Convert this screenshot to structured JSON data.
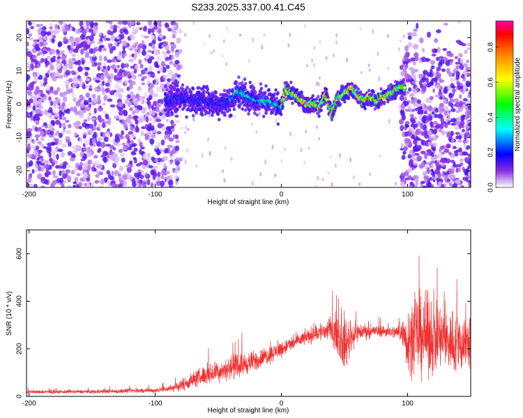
{
  "chart_data": [
    {
      "type": "heatmap",
      "title": "S233.2025.337.00.41.C45",
      "xlabel": "Height of straight line (km)",
      "ylabel": "Frequency (Hz)",
      "xlim": [
        -202,
        150
      ],
      "ylim": [
        -25,
        25
      ],
      "xticks": [
        -200,
        -100,
        0,
        100
      ],
      "xtick_labels": [
        "-200",
        "-100",
        "0",
        "100"
      ],
      "yticks": [
        -20,
        -10,
        0,
        10,
        20
      ],
      "ytick_labels": [
        "-20",
        "-10",
        "0",
        "10",
        "20"
      ],
      "colorbar": {
        "label": "Normalized spectral amplitude",
        "range": [
          0,
          0.95
        ],
        "ticks": [
          0.0,
          0.2,
          0.4,
          0.6,
          0.8
        ],
        "tick_labels": [
          "0.0",
          "0.2",
          "0.4",
          "0.6",
          "0.8"
        ],
        "colors": [
          "#ffffff",
          "#8a2be2",
          "#0000ff",
          "#00ffff",
          "#00ff00",
          "#ffff00",
          "#ff8000",
          "#ff0000",
          "#ff00aa"
        ]
      },
      "ridge_x": [
        -90,
        -80,
        -70,
        -60,
        -50,
        -40,
        -35,
        -30,
        -20,
        -10,
        0,
        3,
        10,
        20,
        25,
        30,
        35,
        40,
        45,
        50,
        55,
        60,
        65,
        70,
        75,
        80,
        85,
        90,
        92
      ],
      "ridge_freq": [
        1,
        2,
        1,
        1,
        0,
        1,
        4,
        3,
        1,
        1,
        -1,
        4,
        3,
        0,
        0,
        -1,
        3,
        -3,
        2,
        3,
        5,
        3,
        1,
        2,
        1,
        2,
        3,
        4,
        5
      ]
    },
    {
      "type": "line",
      "xlabel": "Height of straight line (km)",
      "ylabel": "SNR (10 * v/v)",
      "xlim": [
        -202,
        150
      ],
      "ylim": [
        0,
        700
      ],
      "xticks": [
        -200,
        -100,
        0,
        100
      ],
      "xtick_labels": [
        "-200",
        "-100",
        "0",
        "100"
      ],
      "yticks": [
        0,
        200,
        400,
        600
      ],
      "ytick_labels": [
        "0",
        "200",
        "400",
        "600"
      ],
      "color": "#ee3333",
      "envelope_x": [
        -202,
        -150,
        -100,
        -90,
        -80,
        -70,
        -60,
        -50,
        -40,
        -30,
        -20,
        -10,
        0,
        10,
        20,
        30,
        40,
        45,
        50,
        55,
        60,
        70,
        80,
        90,
        95,
        100,
        110,
        120,
        130,
        140,
        150
      ],
      "envelope_mean": [
        18,
        20,
        25,
        32,
        45,
        70,
        90,
        105,
        120,
        135,
        150,
        175,
        200,
        225,
        250,
        270,
        280,
        260,
        210,
        250,
        270,
        275,
        275,
        270,
        270,
        240,
        260,
        250,
        240,
        220,
        230
      ],
      "envelope_spread": [
        10,
        12,
        15,
        20,
        35,
        50,
        60,
        65,
        70,
        70,
        60,
        55,
        50,
        45,
        45,
        60,
        80,
        130,
        160,
        110,
        60,
        40,
        35,
        40,
        60,
        200,
        260,
        230,
        200,
        200,
        180
      ]
    }
  ]
}
